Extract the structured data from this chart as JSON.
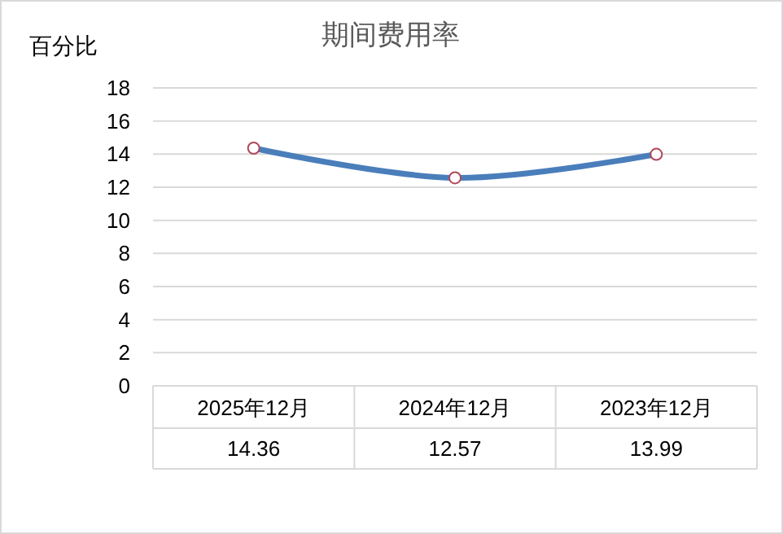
{
  "chart_data": {
    "type": "line",
    "title": "期间费用率",
    "ylabel": "百分比",
    "categories": [
      "2025年12月",
      "2024年12月",
      "2023年12月"
    ],
    "series": [
      {
        "color": "#4a7ebb",
        "values": [
          14.36,
          12.57,
          13.99
        ]
      }
    ],
    "ylim": [
      0,
      18
    ],
    "yticks": [
      0,
      2,
      4,
      6,
      8,
      10,
      12,
      14,
      16,
      18
    ],
    "grid": "y",
    "marker": "circle",
    "line_style": "solid",
    "data_labels": true
  }
}
